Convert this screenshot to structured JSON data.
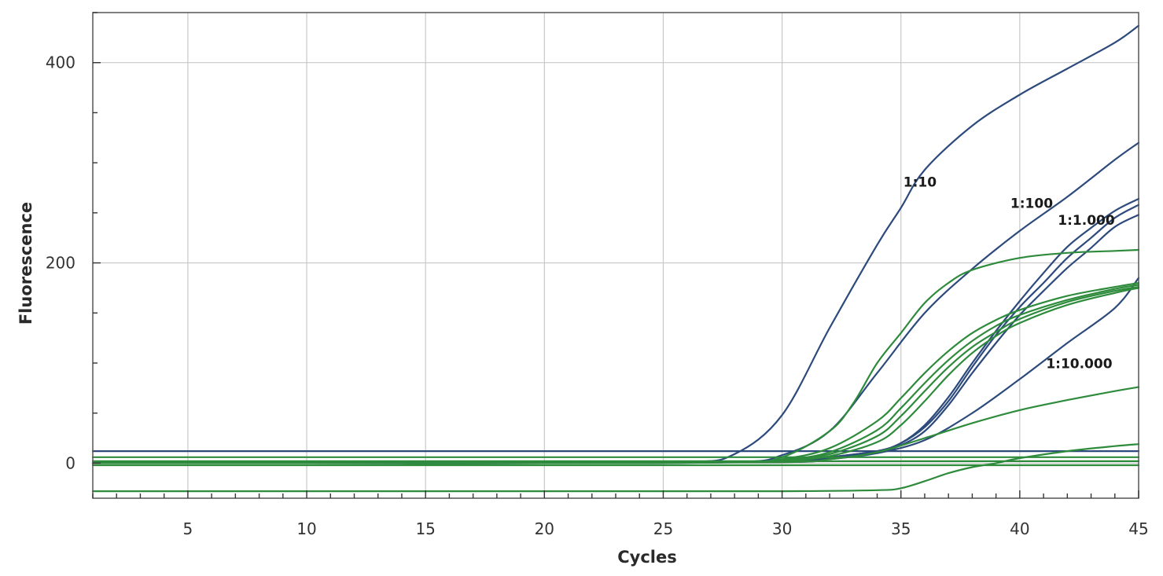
{
  "chart_data": {
    "type": "line",
    "title": "",
    "xlabel": "Cycles",
    "ylabel": "Fluorescence",
    "xlim": [
      1,
      45
    ],
    "ylim": [
      -35,
      450
    ],
    "x_ticks": [
      5,
      10,
      15,
      20,
      25,
      30,
      35,
      40,
      45
    ],
    "y_ticks": [
      0,
      200,
      400
    ],
    "grid": true,
    "legend": "none",
    "colors": {
      "blue": "#2d4a7c",
      "green": "#2e8b3c",
      "grid": "#c8c8c8",
      "frame": "#555555"
    },
    "annotations": [
      {
        "text": "1:10",
        "x": 35.8,
        "y": 276
      },
      {
        "text": "1:100",
        "x": 40.5,
        "y": 255
      },
      {
        "text": "1:1.000",
        "x": 42.8,
        "y": 238
      },
      {
        "text": "1:10.000",
        "x": 42.5,
        "y": 95
      }
    ],
    "series": [
      {
        "color": "blue",
        "x": [
          1,
          10,
          20,
          26,
          28,
          30,
          32,
          34,
          35,
          36,
          38,
          40,
          42,
          44,
          45
        ],
        "y": [
          0,
          0,
          0,
          1,
          9,
          48,
          135,
          218,
          255,
          293,
          337,
          368,
          394,
          420,
          437
        ]
      },
      {
        "color": "blue",
        "x": [
          1,
          10,
          20,
          28,
          30,
          32,
          34,
          36,
          38,
          40,
          42,
          44,
          45
        ],
        "y": [
          0,
          0,
          0,
          1,
          8,
          32,
          90,
          150,
          194,
          232,
          266,
          303,
          320
        ]
      },
      {
        "color": "blue",
        "x": [
          1,
          10,
          20,
          30,
          32,
          34,
          35,
          36,
          37,
          38,
          39,
          40,
          41,
          42,
          43,
          44,
          45
        ],
        "y": [
          0,
          0,
          0,
          2,
          6,
          12,
          20,
          38,
          66,
          100,
          132,
          162,
          190,
          216,
          235,
          252,
          264
        ]
      },
      {
        "color": "blue",
        "x": [
          1,
          10,
          20,
          30,
          32,
          34,
          35,
          36,
          37,
          38,
          39,
          40,
          41,
          42,
          43,
          44,
          45
        ],
        "y": [
          0,
          0,
          0,
          2,
          6,
          12,
          20,
          36,
          62,
          96,
          128,
          156,
          180,
          205,
          225,
          245,
          258
        ]
      },
      {
        "color": "blue",
        "x": [
          1,
          10,
          20,
          30,
          32,
          34,
          35,
          36,
          37,
          38,
          39,
          40,
          41,
          42,
          43,
          44,
          45
        ],
        "y": [
          0,
          0,
          0,
          2,
          5,
          11,
          18,
          32,
          58,
          90,
          120,
          148,
          172,
          195,
          215,
          236,
          248
        ]
      },
      {
        "color": "blue",
        "x": [
          1,
          10,
          20,
          30,
          32,
          34,
          36,
          38,
          40,
          42,
          44,
          45
        ],
        "y": [
          0,
          0,
          0,
          1,
          4,
          10,
          23,
          50,
          84,
          120,
          155,
          185
        ]
      },
      {
        "color": "blue",
        "x": [
          1,
          45
        ],
        "y": [
          12,
          12
        ]
      },
      {
        "color": "green",
        "x": [
          1,
          10,
          20,
          28,
          30,
          32,
          33,
          34,
          35,
          36,
          37,
          38,
          40,
          42,
          44,
          45
        ],
        "y": [
          0,
          0,
          0,
          1,
          6,
          32,
          60,
          100,
          130,
          160,
          180,
          193,
          205,
          210,
          212,
          213
        ]
      },
      {
        "color": "green",
        "x": [
          1,
          10,
          20,
          28,
          30,
          32,
          34,
          35,
          36,
          37,
          38,
          39,
          40,
          42,
          44,
          45
        ],
        "y": [
          0,
          0,
          0,
          1,
          4,
          15,
          42,
          65,
          90,
          112,
          130,
          143,
          153,
          167,
          176,
          180
        ]
      },
      {
        "color": "green",
        "x": [
          1,
          10,
          20,
          28,
          30,
          32,
          34,
          35,
          36,
          37,
          38,
          39,
          40,
          42,
          44,
          45
        ],
        "y": [
          0,
          0,
          0,
          1,
          3,
          11,
          33,
          55,
          80,
          103,
          122,
          137,
          148,
          163,
          174,
          178
        ]
      },
      {
        "color": "green",
        "x": [
          1,
          10,
          20,
          28,
          30,
          32,
          34,
          35,
          36,
          37,
          38,
          39,
          40,
          42,
          44,
          45
        ],
        "y": [
          0,
          0,
          0,
          1,
          3,
          9,
          27,
          47,
          72,
          96,
          116,
          131,
          144,
          161,
          172,
          176
        ]
      },
      {
        "color": "green",
        "x": [
          1,
          10,
          20,
          28,
          30,
          32,
          34,
          35,
          36,
          37,
          38,
          39,
          40,
          42,
          44,
          45
        ],
        "y": [
          0,
          0,
          0,
          1,
          2,
          7,
          21,
          38,
          62,
          88,
          110,
          127,
          140,
          158,
          170,
          175
        ]
      },
      {
        "color": "green",
        "x": [
          1,
          10,
          20,
          30,
          32,
          34,
          36,
          38,
          40,
          42,
          44,
          45
        ],
        "y": [
          0,
          0,
          0,
          1,
          4,
          11,
          25,
          40,
          53,
          63,
          72,
          76
        ]
      },
      {
        "color": "green",
        "x": [
          1,
          10,
          20,
          30,
          34,
          35,
          36,
          37,
          38,
          39,
          40,
          42,
          44,
          45
        ],
        "y": [
          -28,
          -28,
          -28,
          -28,
          -27,
          -25,
          -18,
          -10,
          -4,
          0,
          5,
          12,
          17,
          19
        ]
      },
      {
        "color": "green",
        "x": [
          1,
          45
        ],
        "y": [
          6,
          6
        ]
      },
      {
        "color": "green",
        "x": [
          1,
          45
        ],
        "y": [
          2,
          2
        ]
      },
      {
        "color": "green",
        "x": [
          1,
          45
        ],
        "y": [
          -2,
          -2
        ]
      }
    ]
  }
}
